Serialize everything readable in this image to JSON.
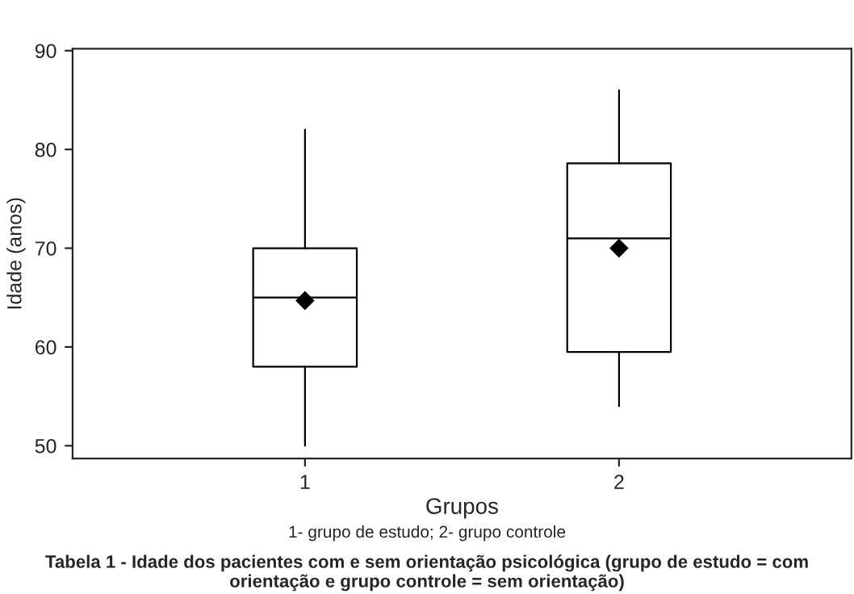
{
  "chart_data": {
    "type": "box",
    "title": "Tabela 1 - Idade dos pacientes com e sem orientação psicológica (grupo de estudo = com orientação e grupo controle = sem orientação)",
    "xlabel": "Grupos",
    "ylabel": "Idade (anos)",
    "annotations": [
      "1- grupo de estudo; 2- grupo controle"
    ],
    "categories": [
      "1",
      "2"
    ],
    "boxes": [
      {
        "low": 50,
        "q1": 58,
        "median": 65,
        "q3": 70,
        "high": 82,
        "mean": 64.7
      },
      {
        "low": 54,
        "q1": 59.5,
        "median": 71,
        "q3": 78.6,
        "high": 86,
        "mean": 70
      }
    ],
    "color": "#000000",
    "ylim": [
      48.7,
      90.2
    ],
    "yticks": [
      50,
      60,
      70,
      80,
      90
    ],
    "grid": false,
    "marker": "diamond"
  }
}
